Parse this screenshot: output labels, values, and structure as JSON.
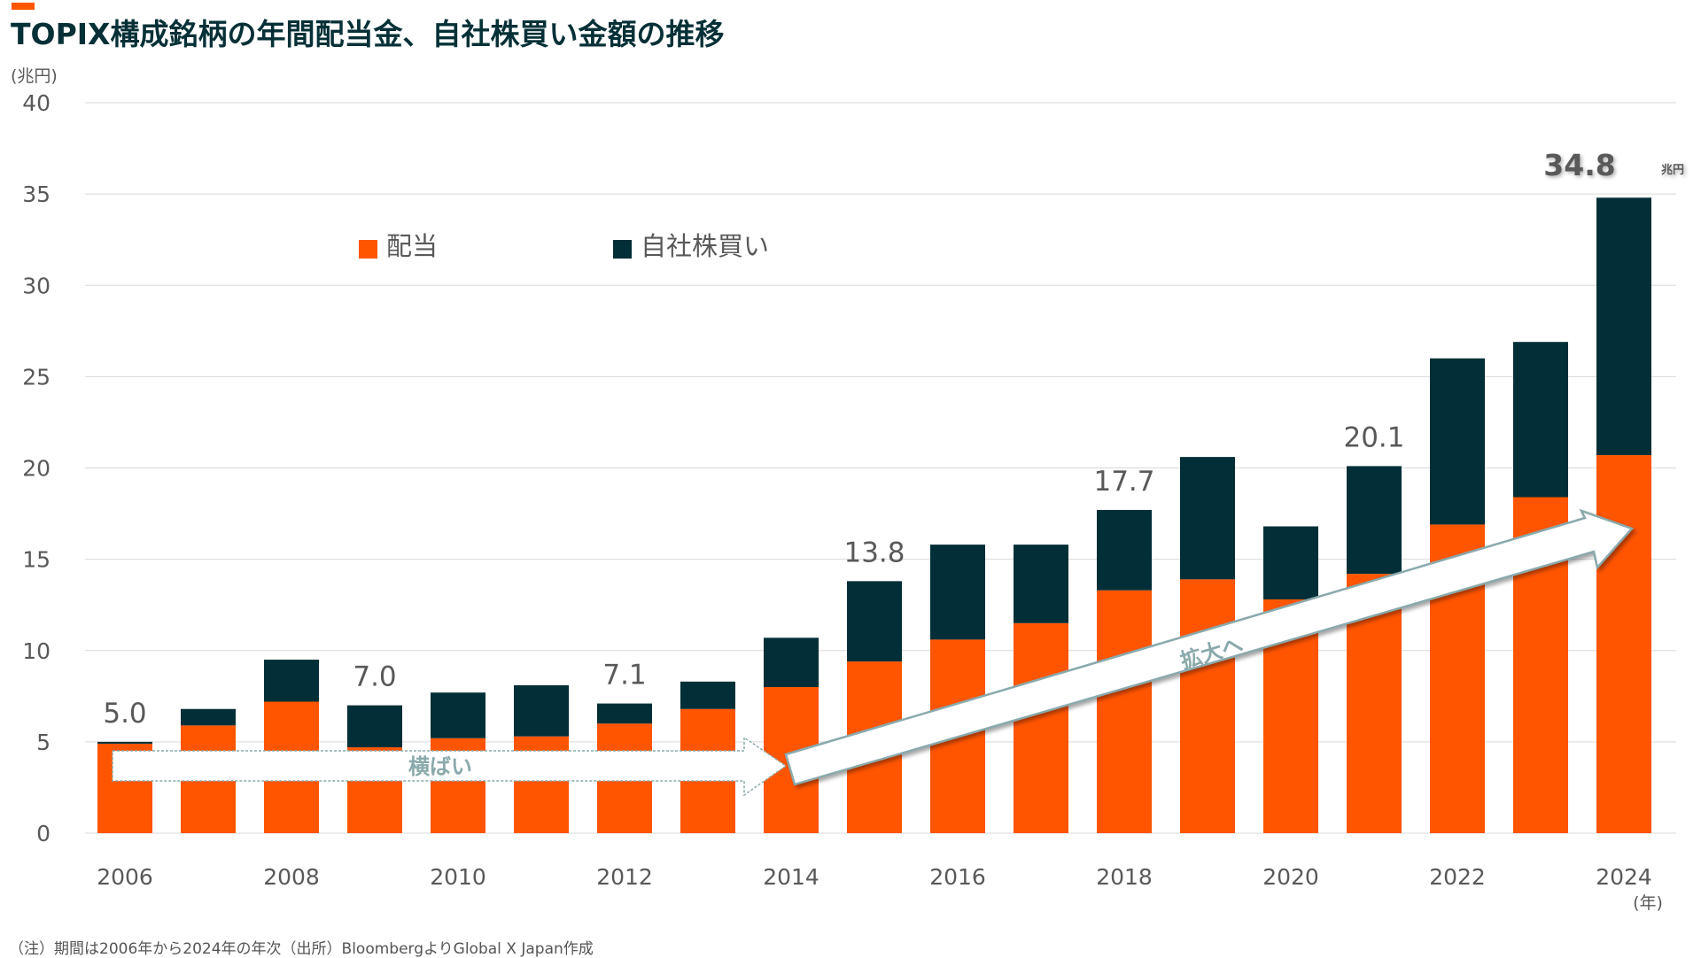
{
  "title": "TOPIX構成銘柄の年間配当金、自社株買い金額の推移",
  "footnote": "（注）期間は2006年から2024年の年次（出所）BloombergよりGlobal X Japan作成",
  "colors": {
    "dividend": "#ff5500",
    "buyback": "#022f37",
    "accent": "#ff5500",
    "title": "#063037",
    "arrow_border": "#8aa9ac",
    "grid": "#d9d9d9"
  },
  "chart_data": {
    "type": "bar",
    "stacked": true,
    "title": "TOPIX構成銘柄の年間配当金、自社株買い金額の推移",
    "ylabel": "(兆円)",
    "xlabel": "(年)",
    "ylim": [
      0,
      40
    ],
    "yticks": [
      0,
      5,
      10,
      15,
      20,
      25,
      30,
      35,
      40
    ],
    "grid": true,
    "legend_position": "top-left",
    "categories": [
      "2006",
      "2007",
      "2008",
      "2009",
      "2010",
      "2011",
      "2012",
      "2013",
      "2014",
      "2015",
      "2016",
      "2017",
      "2018",
      "2019",
      "2020",
      "2021",
      "2022",
      "2023",
      "2024"
    ],
    "xtick_labels": [
      "2006",
      "",
      "2008",
      "",
      "2010",
      "",
      "2012",
      "",
      "2014",
      "",
      "2016",
      "",
      "2018",
      "",
      "2020",
      "",
      "2022",
      "",
      "2024"
    ],
    "series": [
      {
        "name": "配当",
        "color": "#ff5500",
        "values": [
          4.9,
          5.9,
          7.2,
          4.7,
          5.2,
          5.3,
          6.0,
          6.8,
          8.0,
          9.4,
          10.6,
          11.5,
          13.3,
          13.9,
          12.8,
          14.2,
          16.9,
          18.4,
          20.7
        ]
      },
      {
        "name": "自社株買い",
        "color": "#022f37",
        "values": [
          0.1,
          0.9,
          2.3,
          2.3,
          2.5,
          2.8,
          1.1,
          1.5,
          2.7,
          4.4,
          5.2,
          4.3,
          4.4,
          6.7,
          4.0,
          5.9,
          9.1,
          8.5,
          14.1
        ]
      }
    ],
    "totals": [
      5.0,
      6.8,
      9.5,
      7.0,
      7.7,
      8.1,
      7.1,
      8.3,
      10.7,
      13.8,
      15.8,
      15.8,
      17.7,
      20.6,
      16.8,
      20.1,
      26.0,
      26.9,
      34.8
    ],
    "data_labels": [
      {
        "category": "2006",
        "text": "5.0"
      },
      {
        "category": "2009",
        "text": "7.0"
      },
      {
        "category": "2012",
        "text": "7.1"
      },
      {
        "category": "2015",
        "text": "13.8"
      },
      {
        "category": "2018",
        "text": "17.7"
      },
      {
        "category": "2021",
        "text": "20.1"
      }
    ],
    "highlight_label": {
      "category": "2024",
      "value": "34.8",
      "unit": "兆円"
    },
    "annotations": [
      {
        "text": "横ばい",
        "type": "flat-arrow",
        "from": "2006",
        "to": "2013"
      },
      {
        "text": "拡大へ",
        "type": "rising-arrow",
        "from": "2014",
        "to": "2024"
      }
    ]
  }
}
